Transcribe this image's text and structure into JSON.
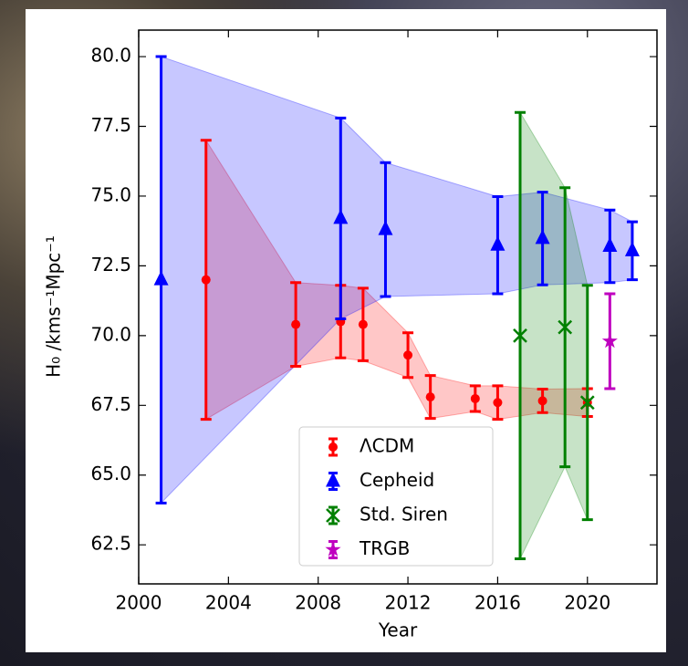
{
  "chart_data": {
    "type": "errorbar",
    "x_label": "Year",
    "y_label": "H₀ /kms⁻¹Mpc⁻¹",
    "xlim": [
      2000,
      2023.1
    ],
    "xticks": [
      2000,
      2004,
      2008,
      2012,
      2016,
      2020
    ],
    "ylim": [
      61.1,
      80.95
    ],
    "yticks": [
      62.5,
      {
        "value": 65,
        "label": "65.0"
      },
      67.5,
      {
        "value": 70,
        "label": "70.0"
      },
      72.5,
      {
        "value": 75,
        "label": "75.0"
      },
      77.5,
      {
        "value": 80,
        "label": "80.0"
      }
    ],
    "legend": "lower center",
    "series": [
      {
        "name": "ΛCDM",
        "color": "#ff0000",
        "marker": "circle",
        "band": true,
        "x": [
          2003,
          2007,
          2009,
          2010,
          2012,
          2013,
          2015,
          2016,
          2018,
          2020
        ],
        "values": [
          72.0,
          70.4,
          70.5,
          70.4,
          69.3,
          67.8,
          67.74,
          67.6,
          67.66,
          67.6
        ],
        "errors": [
          [
            5,
            5
          ],
          [
            1.5,
            1.5
          ],
          [
            1.3,
            1.3
          ],
          [
            1.3,
            1.3
          ],
          [
            0.8,
            0.8
          ],
          [
            0.77,
            0.77
          ],
          [
            0.46,
            0.46
          ],
          [
            0.6,
            0.6
          ],
          [
            0.42,
            0.42
          ],
          [
            0.5,
            0.5
          ]
        ]
      },
      {
        "name": "Cepheid",
        "color": "#0000ff",
        "marker": "triangle",
        "band": true,
        "x": [
          2001,
          2009,
          2011,
          2016,
          2018,
          2021,
          2022
        ],
        "values": [
          72,
          74.2,
          73.8,
          73.24,
          73.48,
          73.2,
          73.04
        ],
        "errors": [
          [
            8,
            8
          ],
          [
            3.6,
            3.6
          ],
          [
            2.4,
            2.4
          ],
          [
            1.74,
            1.74
          ],
          [
            1.66,
            1.66
          ],
          [
            1.3,
            1.3
          ],
          [
            1.04,
            1.04
          ]
        ]
      },
      {
        "name": "Std. Siren",
        "color": "#008000",
        "marker": "x",
        "band": true,
        "x": [
          2017,
          2019,
          2020
        ],
        "values": [
          70.0,
          70.3,
          67.6
        ],
        "errors": [
          [
            8,
            8
          ],
          [
            5,
            5
          ],
          [
            4.2,
            4.2
          ]
        ]
      },
      {
        "name": "TRGB",
        "color": "#bf00bf",
        "marker": "star",
        "band": false,
        "x": [
          2021
        ],
        "values": [
          69.8
        ],
        "errors": [
          [
            1.7,
            1.7
          ]
        ]
      }
    ]
  }
}
